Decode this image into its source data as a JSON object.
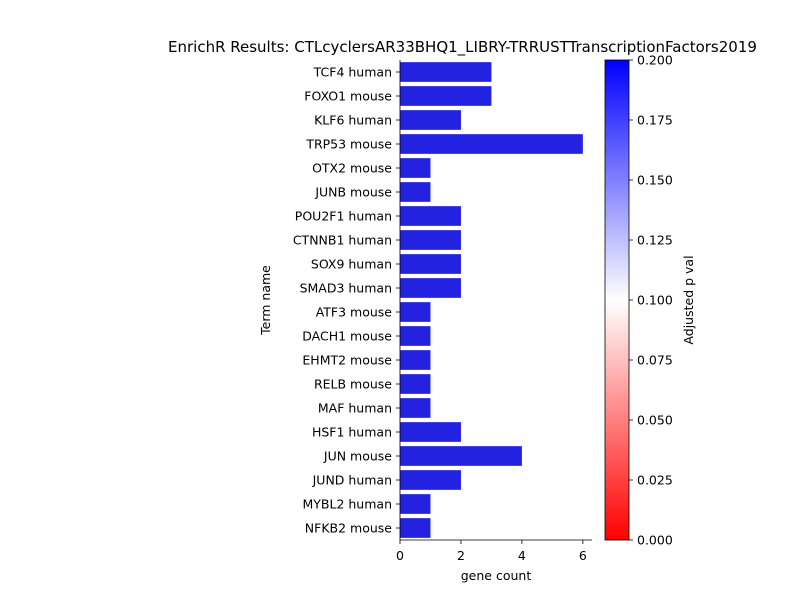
{
  "chart_data": {
    "type": "bar",
    "orientation": "horizontal",
    "title": "EnrichR Results: CTLcyclersAR33BHQ1_LIBRY-TRRUSTTranscriptionFactors2019",
    "xlabel": "gene count",
    "ylabel": "Term name",
    "xlim": [
      0,
      6.3
    ],
    "x_ticks": [
      "0",
      "2",
      "4",
      "6"
    ],
    "categories": [
      "TCF4 human",
      "FOXO1 mouse",
      "KLF6 human",
      "TRP53 mouse",
      "OTX2 mouse",
      "JUNB mouse",
      "POU2F1 human",
      "CTNNB1 human",
      "SOX9 human",
      "SMAD3 human",
      "ATF3 mouse",
      "DACH1 mouse",
      "EHMT2 mouse",
      "RELB mouse",
      "MAF human",
      "HSF1 human",
      "JUN mouse",
      "JUND human",
      "MYBL2 human",
      "NFKB2 mouse"
    ],
    "values": [
      3,
      3,
      2,
      6,
      1,
      1,
      2,
      2,
      2,
      2,
      1,
      1,
      1,
      1,
      1,
      2,
      4,
      2,
      1,
      1
    ],
    "bar_color": "#2222e0",
    "colorbar": {
      "label": "Adjusted p val",
      "range": [
        0.0,
        0.2
      ],
      "ticks": [
        "0.000",
        "0.025",
        "0.050",
        "0.075",
        "0.100",
        "0.125",
        "0.150",
        "0.175",
        "0.200"
      ],
      "colors": [
        "#ff0000",
        "#ffffff",
        "#0000ff"
      ]
    },
    "grid": false,
    "legend": "none"
  }
}
